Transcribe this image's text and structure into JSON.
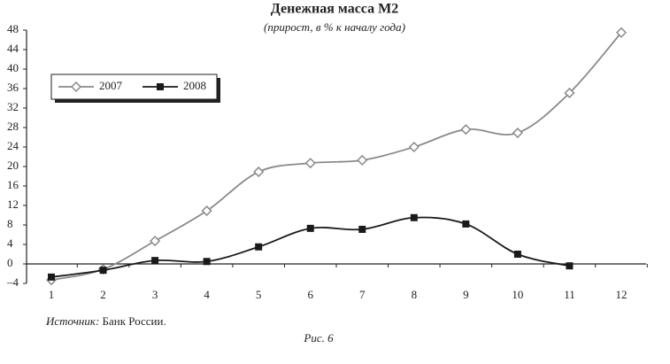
{
  "chart_data": {
    "type": "line",
    "title": "Денежная масса М2",
    "subtitle": "(прирост, в % к началу года)",
    "categories": [
      "1",
      "2",
      "3",
      "4",
      "5",
      "6",
      "7",
      "8",
      "9",
      "10",
      "11",
      "12"
    ],
    "series": [
      {
        "name": "2007",
        "color": "#8a8a8a",
        "marker": "diamond",
        "values": [
          -3.3,
          -1.1,
          4.7,
          10.9,
          18.9,
          20.7,
          21.3,
          24.0,
          27.6,
          26.9,
          35.1,
          47.5
        ]
      },
      {
        "name": "2008",
        "color": "#1a1a1a",
        "marker": "square",
        "values": [
          -2.7,
          -1.3,
          0.7,
          0.5,
          3.5,
          7.3,
          7.1,
          9.5,
          8.2,
          2.0,
          -0.4,
          null
        ]
      }
    ],
    "ylim": [
      -4,
      48
    ],
    "yticks": [
      {
        "value": -4,
        "label": "–4"
      },
      0,
      4,
      8,
      12,
      16,
      20,
      24,
      28,
      32,
      36,
      40,
      44,
      48
    ],
    "legend": "upper-left",
    "source_label": "Источник:",
    "source_text": "Банк России.",
    "caption": "Рис. 6"
  }
}
